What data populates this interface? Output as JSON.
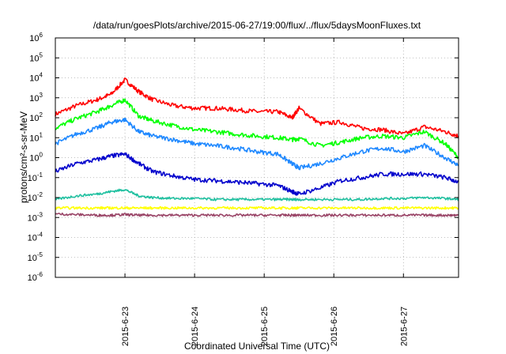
{
  "chart_data": {
    "type": "line",
    "title": "/data/run/goesPlots/archive/2015-06-27/19:00/flux/../flux/5daysMoonFluxes.txt",
    "xlabel": "Coordinated Universal Time (UTC)",
    "ylabel": "protons/cm²-s-sr-MeV",
    "yscale": "log",
    "ylim": [
      1e-06,
      1000000.0
    ],
    "xlim": [
      "2015-06-22T00:00",
      "2015-06-27T19:00"
    ],
    "x_ticks": [
      "2015-6-23",
      "2015-6-24",
      "2015-6-25",
      "2015-6-26",
      "2015-6-27"
    ],
    "y_ticks": [
      {
        "base": "10",
        "exp": "-6"
      },
      {
        "base": "10",
        "exp": "-5"
      },
      {
        "base": "10",
        "exp": "-4"
      },
      {
        "base": "10",
        "exp": "-3"
      },
      {
        "base": "10",
        "exp": "-2"
      },
      {
        "base": "10",
        "exp": "-1"
      },
      {
        "base": "10",
        "exp": "0"
      },
      {
        "base": "10",
        "exp": "1"
      },
      {
        "base": "10",
        "exp": "2"
      },
      {
        "base": "10",
        "exp": "3"
      },
      {
        "base": "10",
        "exp": "4"
      },
      {
        "base": "10",
        "exp": "5"
      },
      {
        "base": "10",
        "exp": "6"
      }
    ],
    "grid": true,
    "x": [
      "2015-06-22T00:00",
      "2015-06-22T07:12",
      "2015-06-22T14:24",
      "2015-06-22T19:12",
      "2015-06-23T00:00",
      "2015-06-23T04:48",
      "2015-06-23T09:36",
      "2015-06-23T16:48",
      "2015-06-24T00:00",
      "2015-06-24T07:12",
      "2015-06-24T14:24",
      "2015-06-24T21:36",
      "2015-06-25T04:48",
      "2015-06-25T09:36",
      "2015-06-25T12:00",
      "2015-06-25T19:12",
      "2015-06-26T02:24",
      "2015-06-26T09:36",
      "2015-06-26T16:48",
      "2015-06-27T00:00",
      "2015-06-27T07:12",
      "2015-06-27T14:24",
      "2015-06-27T19:00"
    ],
    "series": [
      {
        "color": "#ff0000",
        "values": [
          150,
          400,
          800,
          1500,
          8000,
          2000,
          800,
          400,
          300,
          300,
          250,
          200,
          200,
          100,
          300,
          50,
          60,
          30,
          25,
          15,
          35,
          20,
          12
        ]
      },
      {
        "color": "#00ff00",
        "values": [
          30,
          90,
          200,
          400,
          800,
          120,
          70,
          40,
          25,
          20,
          15,
          12,
          10,
          8,
          9,
          4,
          6,
          10,
          12,
          10,
          20,
          5,
          1
        ]
      },
      {
        "color": "#1e88ff",
        "values": [
          5,
          15,
          30,
          60,
          80,
          20,
          12,
          8,
          5,
          4,
          3,
          2,
          1.5,
          0.5,
          0.3,
          0.5,
          1,
          2,
          3,
          2,
          4,
          1,
          0.4
        ]
      },
      {
        "color": "#0000cc",
        "values": [
          0.2,
          0.5,
          0.8,
          1.2,
          1.5,
          0.5,
          0.2,
          0.12,
          0.08,
          0.07,
          0.06,
          0.05,
          0.04,
          0.02,
          0.015,
          0.03,
          0.07,
          0.1,
          0.15,
          0.15,
          0.15,
          0.1,
          0.06
        ]
      },
      {
        "color": "#20c0a0",
        "values": [
          0.008,
          0.012,
          0.015,
          0.02,
          0.025,
          0.012,
          0.01,
          0.009,
          0.009,
          0.008,
          0.008,
          0.008,
          0.008,
          0.008,
          0.008,
          0.008,
          0.008,
          0.008,
          0.009,
          0.009,
          0.01,
          0.009,
          0.008
        ]
      },
      {
        "color": "#ffff00",
        "values": [
          0.003,
          0.003,
          0.003,
          0.003,
          0.003,
          0.003,
          0.003,
          0.003,
          0.003,
          0.003,
          0.003,
          0.003,
          0.003,
          0.003,
          0.003,
          0.003,
          0.003,
          0.003,
          0.003,
          0.003,
          0.003,
          0.003,
          0.003
        ]
      },
      {
        "color": "#994466",
        "values": [
          0.0015,
          0.0014,
          0.0013,
          0.0013,
          0.0014,
          0.0013,
          0.0013,
          0.0013,
          0.0013,
          0.0013,
          0.0013,
          0.0013,
          0.0013,
          0.0013,
          0.0013,
          0.0013,
          0.0013,
          0.0013,
          0.0013,
          0.0013,
          0.0013,
          0.0013,
          0.0013
        ]
      }
    ]
  }
}
